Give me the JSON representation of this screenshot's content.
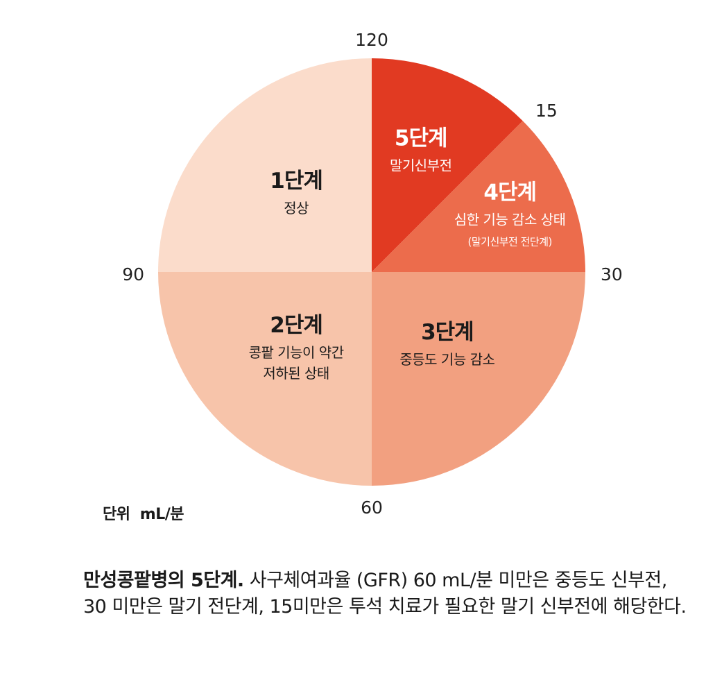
{
  "chart_data": {
    "type": "pie",
    "axis_ticks": [
      "120",
      "15",
      "30",
      "60",
      "90"
    ],
    "segments": [
      {
        "stage": "5단계",
        "desc": [
          "말기신부전"
        ],
        "from": 0,
        "to": 15,
        "color": "#e13a22",
        "text_color": "#ffffff"
      },
      {
        "stage": "4단계",
        "desc": [
          "심한 기능 감소 상태",
          "(말기신부전 전단계)"
        ],
        "from": 15,
        "to": 30,
        "color": "#ec6c4c",
        "text_color": "#ffffff"
      },
      {
        "stage": "3단계",
        "desc": [
          "중등도 기능 감소"
        ],
        "from": 30,
        "to": 60,
        "color": "#f2a080",
        "text_color": "#1a1a1a"
      },
      {
        "stage": "2단계",
        "desc": [
          "콩팥 기능이 약간",
          "저하된 상태"
        ],
        "from": 60,
        "to": 90,
        "color": "#f7c4aa",
        "text_color": "#1a1a1a"
      },
      {
        "stage": "1단계",
        "desc": [
          "정상"
        ],
        "from": 90,
        "to": 120,
        "color": "#fbdccb",
        "text_color": "#1a1a1a"
      }
    ]
  },
  "unit_label": "단위  mL/분",
  "caption": {
    "bold": "만성콩팥병의 5단계.",
    "text": " 사구체여과율 (GFR) 60 mL/분 미만은 중등도 신부전, 30 미만은 말기 전단계, 15미만은 투석 치료가 필요한 말기 신부전에 해당한다."
  }
}
